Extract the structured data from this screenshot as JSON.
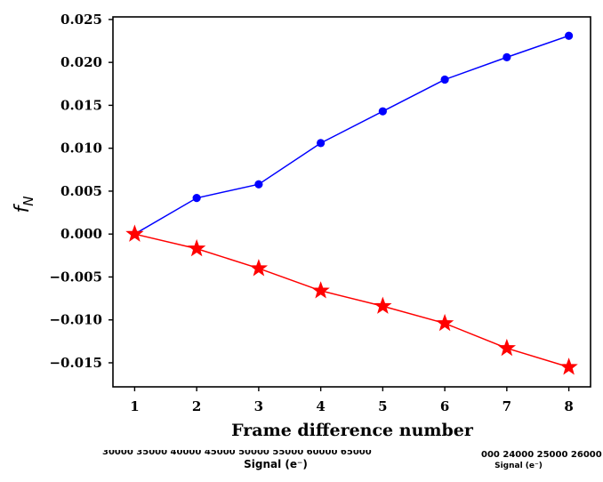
{
  "chart_data": {
    "type": "line",
    "xlabel": "Frame difference number",
    "ylabel": "f",
    "ylabel_sub": "N",
    "xlim": [
      0.65,
      8.35
    ],
    "ylim": [
      -0.0178,
      0.0253
    ],
    "x_ticks": [
      1,
      2,
      3,
      4,
      5,
      6,
      7,
      8
    ],
    "y_ticks": [
      -0.015,
      -0.01,
      -0.005,
      0.0,
      0.005,
      0.01,
      0.015,
      0.02,
      0.025
    ],
    "y_tick_labels": [
      "−0.015",
      "−0.010",
      "−0.005",
      "0.000",
      "0.005",
      "0.010",
      "0.015",
      "0.020",
      "0.025"
    ],
    "grid": false,
    "series": [
      {
        "x": [
          1,
          2,
          3,
          4,
          5,
          6,
          7,
          8
        ],
        "values": [
          0.0,
          0.0042,
          0.0058,
          0.0106,
          0.0143,
          0.018,
          0.0206,
          0.0231
        ],
        "color": "#0000ff",
        "marker": "circle"
      },
      {
        "x": [
          1,
          2,
          3,
          4,
          5,
          6,
          7,
          8
        ],
        "values": [
          0.0,
          -0.0017,
          -0.004,
          -0.0066,
          -0.0084,
          -0.0104,
          -0.0133,
          -0.0155
        ],
        "color": "#ff0000",
        "marker": "star"
      }
    ]
  },
  "overlap": {
    "left_ticks_text": "30000    35000    40000    45000    50000    55000    60000    65000",
    "left_xlabel": "Signal (e⁻)",
    "right_ticks_text": "000 24000 25000 26000",
    "right_xlabel": "Signal (e⁻)"
  }
}
